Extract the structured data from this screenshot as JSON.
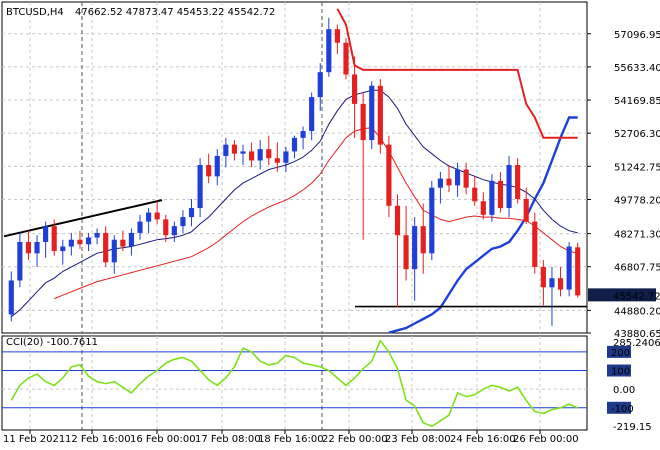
{
  "header": {
    "symbol": "BTCUSD,H4",
    "ohlc": "47662.52 47873.47 45453.22 45542.72"
  },
  "indicator": {
    "label": "CCI(20) -100.7611"
  },
  "colors": {
    "bull": "#1f3fd8",
    "bear": "#e52020",
    "ma_fast": "#1a1a80",
    "ma_slow": "#e52020",
    "support_trend": "#1f3fd8",
    "stop_trend": "#e52020",
    "cci": "#7fe01c",
    "price_badge": "#0f1f4a",
    "level_badge": "#1f3a8a"
  },
  "chart_data": [
    {
      "type": "candlestick",
      "title": "BTCUSD,H4",
      "ylim": [
        43880.65,
        58500
      ],
      "price_ticks": [
        "57096.95",
        "55633.40",
        "54169.85",
        "52706.30",
        "51242.75",
        "49778.20",
        "48271.30",
        "46807.75",
        "45542.72",
        "44880.20",
        "43880.65"
      ],
      "current_price_label": "45542.72",
      "x_ticks": [
        "11 Feb 2021",
        "12 Feb 16:00",
        "16 Feb 00:00",
        "17 Feb 08:00",
        "18 Feb 16:00",
        "22 Feb 00:00",
        "23 Feb 08:00",
        "24 Feb 16:00",
        "26 Feb 00:00"
      ],
      "candles": [
        {
          "o": 44700,
          "h": 46600,
          "l": 44400,
          "c": 46200
        },
        {
          "o": 46200,
          "h": 48300,
          "l": 45900,
          "c": 47900
        },
        {
          "o": 47900,
          "h": 48400,
          "l": 47100,
          "c": 47400
        },
        {
          "o": 47400,
          "h": 48200,
          "l": 46800,
          "c": 47900
        },
        {
          "o": 47900,
          "h": 48800,
          "l": 47200,
          "c": 48600
        },
        {
          "o": 48600,
          "h": 48900,
          "l": 47300,
          "c": 47500
        },
        {
          "o": 47500,
          "h": 48000,
          "l": 46900,
          "c": 47700
        },
        {
          "o": 47700,
          "h": 48300,
          "l": 47300,
          "c": 48000
        },
        {
          "o": 48000,
          "h": 48400,
          "l": 47600,
          "c": 47800
        },
        {
          "o": 47800,
          "h": 48300,
          "l": 47500,
          "c": 48100
        },
        {
          "o": 48100,
          "h": 48500,
          "l": 47800,
          "c": 48300
        },
        {
          "o": 48300,
          "h": 48600,
          "l": 46800,
          "c": 47000
        },
        {
          "o": 47000,
          "h": 48200,
          "l": 46500,
          "c": 48000
        },
        {
          "o": 48000,
          "h": 48400,
          "l": 47500,
          "c": 47700
        },
        {
          "o": 47700,
          "h": 48500,
          "l": 47300,
          "c": 48300
        },
        {
          "o": 48300,
          "h": 49100,
          "l": 48000,
          "c": 48800
        },
        {
          "o": 48800,
          "h": 49400,
          "l": 48300,
          "c": 49200
        },
        {
          "o": 49200,
          "h": 49700,
          "l": 48700,
          "c": 48900
        },
        {
          "o": 48900,
          "h": 49100,
          "l": 47900,
          "c": 48200
        },
        {
          "o": 48200,
          "h": 48800,
          "l": 47900,
          "c": 48600
        },
        {
          "o": 48600,
          "h": 49300,
          "l": 48300,
          "c": 49000
        },
        {
          "o": 49000,
          "h": 49800,
          "l": 48600,
          "c": 49400
        },
        {
          "o": 49400,
          "h": 51600,
          "l": 49000,
          "c": 51300
        },
        {
          "o": 51300,
          "h": 51800,
          "l": 50500,
          "c": 50800
        },
        {
          "o": 50800,
          "h": 52000,
          "l": 50400,
          "c": 51700
        },
        {
          "o": 51700,
          "h": 52500,
          "l": 51200,
          "c": 52200
        },
        {
          "o": 52200,
          "h": 52400,
          "l": 51500,
          "c": 51800
        },
        {
          "o": 51800,
          "h": 52200,
          "l": 51300,
          "c": 51900
        },
        {
          "o": 51900,
          "h": 52300,
          "l": 51200,
          "c": 51500
        },
        {
          "o": 51500,
          "h": 52400,
          "l": 51100,
          "c": 52000
        },
        {
          "o": 52000,
          "h": 52600,
          "l": 51300,
          "c": 51600
        },
        {
          "o": 51600,
          "h": 52300,
          "l": 51000,
          "c": 51400
        },
        {
          "o": 51400,
          "h": 52100,
          "l": 51000,
          "c": 51900
        },
        {
          "o": 51900,
          "h": 52600,
          "l": 51600,
          "c": 52500
        },
        {
          "o": 52500,
          "h": 53000,
          "l": 52000,
          "c": 52800
        },
        {
          "o": 52800,
          "h": 54500,
          "l": 52400,
          "c": 54300
        },
        {
          "o": 54300,
          "h": 55800,
          "l": 53700,
          "c": 55400
        },
        {
          "o": 55400,
          "h": 57800,
          "l": 55200,
          "c": 57300
        },
        {
          "o": 57300,
          "h": 57500,
          "l": 56200,
          "c": 56700
        },
        {
          "o": 56700,
          "h": 56900,
          "l": 55100,
          "c": 55300
        },
        {
          "o": 55300,
          "h": 56100,
          "l": 52500,
          "c": 54000
        },
        {
          "o": 54000,
          "h": 54500,
          "l": 48000,
          "c": 52400
        },
        {
          "o": 52400,
          "h": 55000,
          "l": 52000,
          "c": 54800
        },
        {
          "o": 54800,
          "h": 55100,
          "l": 51800,
          "c": 52200
        },
        {
          "o": 52200,
          "h": 52600,
          "l": 49000,
          "c": 49500
        },
        {
          "o": 49500,
          "h": 50000,
          "l": 45000,
          "c": 48200
        },
        {
          "o": 48200,
          "h": 49500,
          "l": 46200,
          "c": 46700
        },
        {
          "o": 46700,
          "h": 49000,
          "l": 45300,
          "c": 48600
        },
        {
          "o": 48600,
          "h": 49600,
          "l": 46500,
          "c": 47400
        },
        {
          "o": 47400,
          "h": 50600,
          "l": 47100,
          "c": 50300
        },
        {
          "o": 50300,
          "h": 51000,
          "l": 49600,
          "c": 50700
        },
        {
          "o": 50700,
          "h": 51300,
          "l": 50100,
          "c": 50400
        },
        {
          "o": 50400,
          "h": 51400,
          "l": 49900,
          "c": 51100
        },
        {
          "o": 51100,
          "h": 51400,
          "l": 50000,
          "c": 50300
        },
        {
          "o": 50300,
          "h": 50800,
          "l": 49500,
          "c": 49700
        },
        {
          "o": 49700,
          "h": 50100,
          "l": 48900,
          "c": 49100
        },
        {
          "o": 49100,
          "h": 50900,
          "l": 48800,
          "c": 50600
        },
        {
          "o": 50600,
          "h": 51000,
          "l": 49200,
          "c": 49400
        },
        {
          "o": 49400,
          "h": 51700,
          "l": 49000,
          "c": 51300
        },
        {
          "o": 51300,
          "h": 51600,
          "l": 49600,
          "c": 49800
        },
        {
          "o": 49800,
          "h": 50300,
          "l": 48700,
          "c": 48800
        },
        {
          "o": 48800,
          "h": 49200,
          "l": 46500,
          "c": 46800
        },
        {
          "o": 46800,
          "h": 47100,
          "l": 45100,
          "c": 45900
        },
        {
          "o": 45900,
          "h": 46800,
          "l": 44200,
          "c": 46300
        },
        {
          "o": 46300,
          "h": 46800,
          "l": 45500,
          "c": 45800
        },
        {
          "o": 45800,
          "h": 47900,
          "l": 45500,
          "c": 47700
        },
        {
          "o": 47662.52,
          "h": 47873.47,
          "l": 45453.22,
          "c": 45542.72
        }
      ],
      "ma_fast": [
        44600,
        44900,
        45300,
        45700,
        46100,
        46300,
        46600,
        46800,
        47000,
        47200,
        47400,
        47500,
        47600,
        47650,
        47700,
        47800,
        47900,
        48000,
        48050,
        48100,
        48200,
        48350,
        48700,
        49000,
        49400,
        49800,
        50200,
        50500,
        50700,
        50900,
        51100,
        51200,
        51300,
        51450,
        51650,
        51950,
        52350,
        53100,
        53700,
        54200,
        54400,
        54500,
        54600,
        54600,
        54300,
        53800,
        53100,
        52600,
        52100,
        51800,
        51500,
        51250,
        51100,
        50950,
        50800,
        50650,
        50550,
        50450,
        50400,
        50300,
        50100,
        49800,
        49300,
        48900,
        48600,
        48400,
        48300
      ],
      "ma_slow": [
        null,
        null,
        null,
        null,
        null,
        45400,
        45550,
        45700,
        45850,
        46000,
        46150,
        46250,
        46350,
        46450,
        46550,
        46650,
        46750,
        46850,
        46950,
        47050,
        47150,
        47250,
        47450,
        47650,
        47900,
        48200,
        48500,
        48800,
        49050,
        49250,
        49450,
        49600,
        49750,
        49950,
        50200,
        50500,
        50900,
        51500,
        52000,
        52500,
        52800,
        52900,
        52950,
        52500,
        51900,
        51200,
        50500,
        49900,
        49300,
        49100,
        48900,
        48800,
        48900,
        49000,
        49050,
        49000,
        49000,
        48950,
        48950,
        48900,
        48850,
        48600,
        48300,
        48000,
        47700,
        47500,
        47400
      ],
      "support_trend": [
        null,
        null,
        null,
        null,
        null,
        null,
        null,
        null,
        null,
        null,
        null,
        null,
        null,
        null,
        null,
        null,
        null,
        null,
        null,
        null,
        null,
        null,
        null,
        null,
        null,
        null,
        null,
        null,
        null,
        null,
        43900,
        44000,
        44100,
        44300,
        44500,
        44700,
        45000,
        45600,
        46200,
        46700,
        47000,
        47300,
        47600,
        47700,
        47900,
        48400,
        49000,
        49800,
        50500,
        51500,
        52500,
        53400,
        53400
      ],
      "stop_trend": [
        58200,
        57500,
        55700,
        55500,
        55500,
        55500,
        55500,
        55500,
        55500,
        55500,
        55500,
        55500,
        55500,
        55500,
        55500,
        55500,
        55500,
        55500,
        55500,
        55500,
        55500,
        55500,
        54000,
        53400,
        52500,
        52500,
        52500,
        52500,
        52500
      ]
    },
    {
      "type": "line",
      "title": "CCI(20) -100.7611",
      "ylim": [
        -219.15,
        285.2406
      ],
      "y_ticks": [
        "285.2406",
        "200",
        "100",
        "0.00",
        "-100",
        "-219.15"
      ],
      "levels": [
        200,
        100,
        -100
      ],
      "series": [
        {
          "values": [
            -60,
            20,
            60,
            80,
            40,
            20,
            60,
            120,
            130,
            70,
            40,
            30,
            40,
            10,
            -20,
            30,
            70,
            100,
            140,
            160,
            170,
            150,
            100,
            50,
            20,
            60,
            120,
            220,
            200,
            150,
            130,
            140,
            180,
            170,
            140,
            130,
            120,
            100,
            60,
            20,
            60,
            110,
            150,
            260,
            200,
            110,
            -60,
            -90,
            -180,
            -200,
            -170,
            -140,
            -20,
            -40,
            -30,
            0,
            20,
            10,
            -10,
            10,
            -60,
            -120,
            -130,
            -110,
            -100,
            -80,
            -100.7611
          ]
        }
      ]
    }
  ]
}
